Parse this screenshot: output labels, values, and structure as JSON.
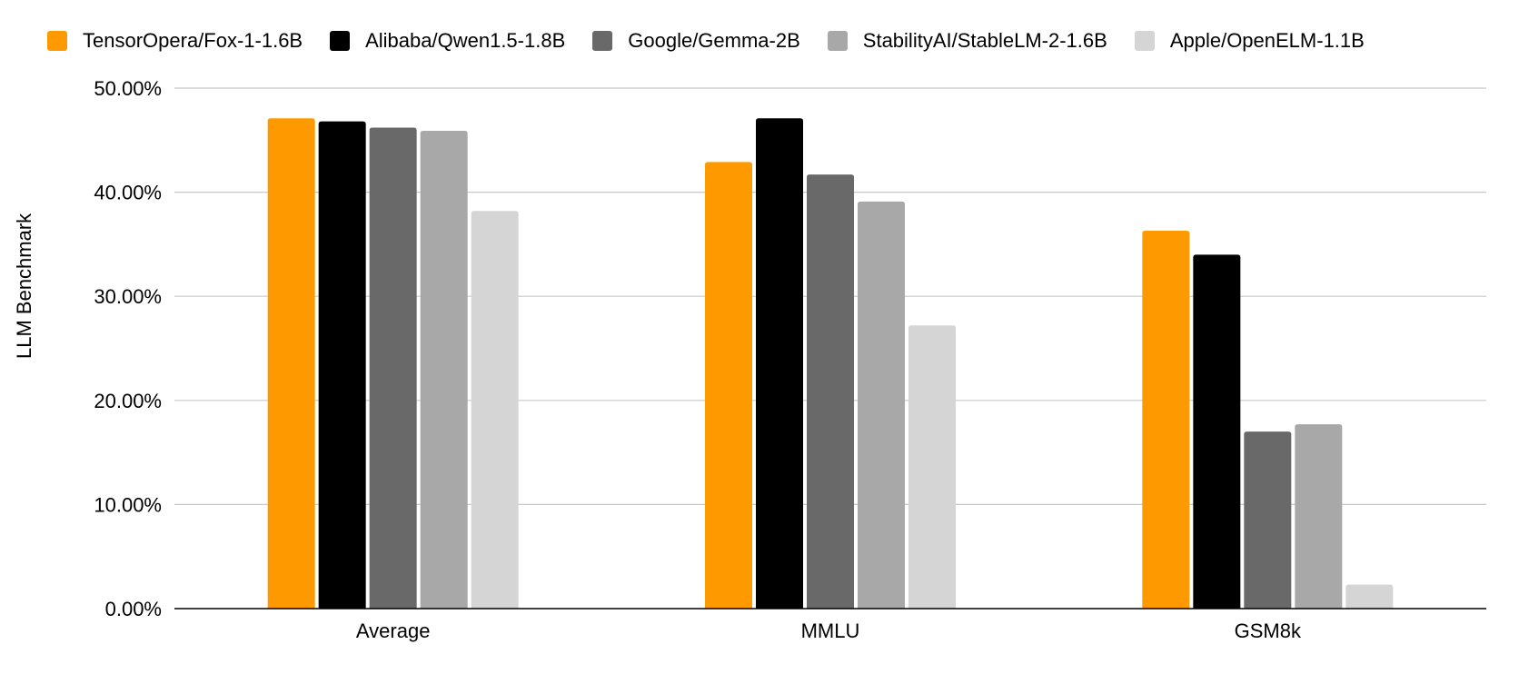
{
  "chart_data": {
    "type": "bar",
    "categories": [
      "Average",
      "MMLU",
      "GSM8k"
    ],
    "series": [
      {
        "name": "TensorOpera/Fox-1-1.6B",
        "color": "#FF9900",
        "values": [
          47.1,
          42.9,
          36.3
        ]
      },
      {
        "name": "Alibaba/Qwen1.5-1.8B",
        "color": "#000000",
        "values": [
          46.8,
          47.1,
          34.0
        ]
      },
      {
        "name": "Google/Gemma-2B",
        "color": "#696969",
        "values": [
          46.2,
          41.7,
          17.0
        ]
      },
      {
        "name": "StabilityAI/StableLM-2-1.6B",
        "color": "#A8A8A8",
        "values": [
          45.9,
          39.1,
          17.7
        ]
      },
      {
        "name": "Apple/OpenELM-1.1B",
        "color": "#D5D5D5",
        "values": [
          38.2,
          27.2,
          2.3
        ]
      }
    ],
    "ylabel": "LLM Benchmark",
    "ylim": [
      0,
      50
    ],
    "yticks": [
      "0.00%",
      "10.00%",
      "20.00%",
      "30.00%",
      "40.00%",
      "50.00%"
    ],
    "grid": true,
    "legend_position": "top"
  }
}
